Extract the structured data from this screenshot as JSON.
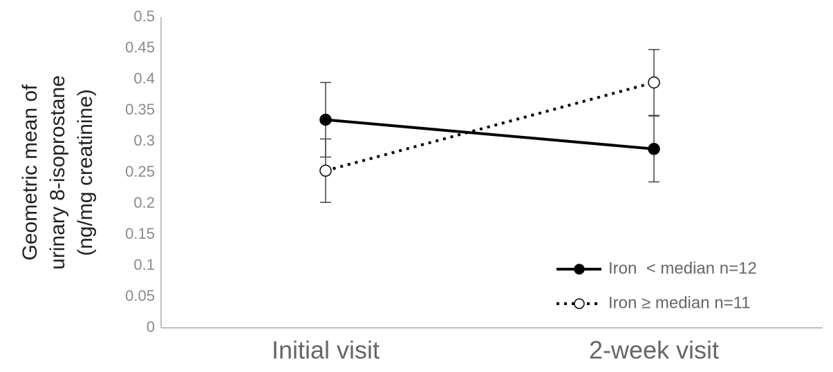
{
  "chart_data": {
    "type": "line",
    "ylabel": [
      "Geometric mean of",
      "urinary 8-isoprostane",
      "(ng/mg creatinine)"
    ],
    "categories": [
      "Initial visit",
      "2-week visit"
    ],
    "series": [
      {
        "name": "Iron  < median n=12",
        "color": "#000000",
        "dash": "solid",
        "marker_fill": "#000000",
        "values": [
          0.335,
          0.288
        ],
        "errors": [
          0.06,
          0.053
        ]
      },
      {
        "name": "Iron ≥ median n=11",
        "color": "#000000",
        "dash": "dotted",
        "marker_fill": "#ffffff",
        "values": [
          0.253,
          0.395
        ],
        "errors": [
          0.051,
          0.053
        ]
      }
    ],
    "ylim": [
      0,
      0.5
    ],
    "yticks": [
      0,
      0.05,
      0.1,
      0.15,
      0.2,
      0.25,
      0.3,
      0.35,
      0.4,
      0.45,
      0.5
    ],
    "grid": false,
    "legend": "lower right"
  }
}
